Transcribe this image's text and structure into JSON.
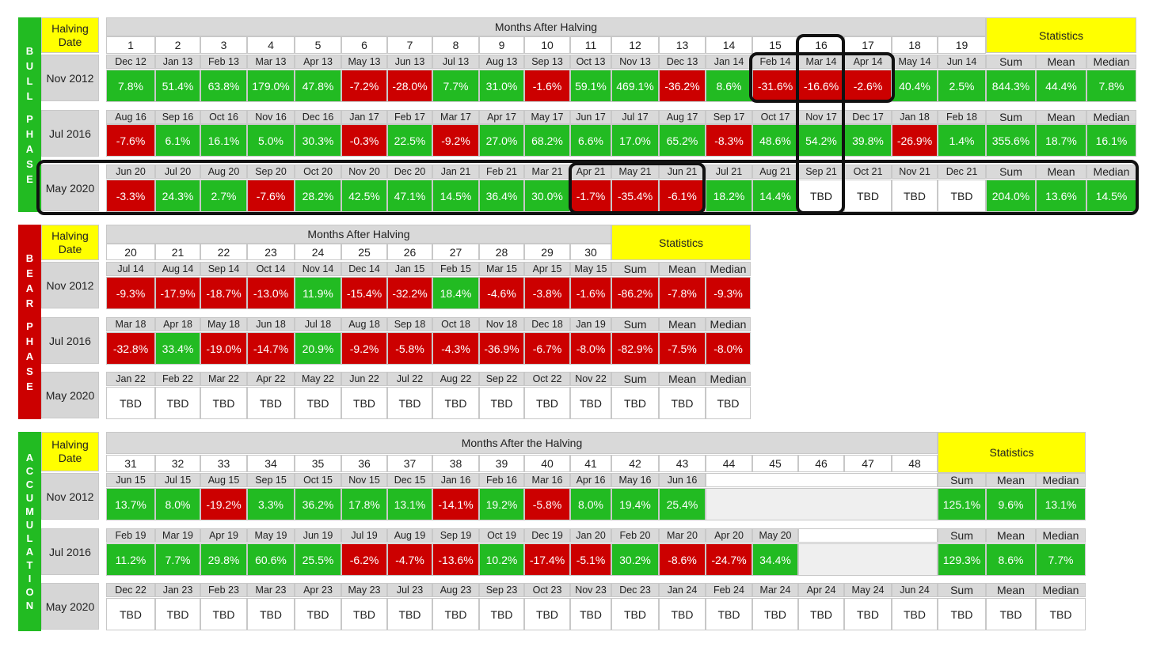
{
  "colors": {
    "positive": "#22bb22",
    "negative": "#cc0000",
    "yellow": "#ffff00",
    "gray": "#d9d9d9",
    "row_label_gray": "#d6d6d6",
    "phase_bull": "#22bb22",
    "phase_bear": "#cc0000",
    "phase_accum": "#22bb22",
    "empty_fill": "#efefef",
    "border": "#c8c8c8",
    "highlight": "#111111"
  },
  "chart_data": [
    {
      "type": "table",
      "phase": "BULL PHASE",
      "halving_label": "Halving Date",
      "months_title": "Months After Halving",
      "stats_title": "Statistics",
      "stat_labels": [
        "Sum",
        "Mean",
        "Median"
      ],
      "months": [
        "1",
        "2",
        "3",
        "4",
        "5",
        "6",
        "7",
        "8",
        "9",
        "10",
        "11",
        "12",
        "13",
        "14",
        "15",
        "16",
        "17",
        "18",
        "19"
      ],
      "rows": [
        {
          "halving": "Nov 2012",
          "dates": [
            "Dec 12",
            "Jan 13",
            "Feb 13",
            "Mar 13",
            "Apr 13",
            "May 13",
            "Jun 13",
            "Jul 13",
            "Aug 13",
            "Sep 13",
            "Oct 13",
            "Nov 13",
            "Dec 13",
            "Jan 14",
            "Feb 14",
            "Mar 14",
            "Apr 14",
            "May 14",
            "Jun 14"
          ],
          "values": [
            "7.8%",
            "51.4%",
            "63.8%",
            "179.0%",
            "47.8%",
            "-7.2%",
            "-28.0%",
            "7.7%",
            "31.0%",
            "-1.6%",
            "59.1%",
            "469.1%",
            "-36.2%",
            "8.6%",
            "-31.6%",
            "-16.6%",
            "-2.6%",
            "40.4%",
            "2.5%"
          ],
          "stats": [
            "844.3%",
            "44.4%",
            "7.8%"
          ]
        },
        {
          "halving": "Jul 2016",
          "dates": [
            "Aug 16",
            "Sep 16",
            "Oct 16",
            "Nov 16",
            "Dec 16",
            "Jan 17",
            "Feb 17",
            "Mar 17",
            "Apr 17",
            "May 17",
            "Jun 17",
            "Jul 17",
            "Aug 17",
            "Sep 17",
            "Oct 17",
            "Nov 17",
            "Dec 17",
            "Jan 18",
            "Feb 18"
          ],
          "values": [
            "-7.6%",
            "6.1%",
            "16.1%",
            "5.0%",
            "30.3%",
            "-0.3%",
            "22.5%",
            "-9.2%",
            "27.0%",
            "68.2%",
            "6.6%",
            "17.0%",
            "65.2%",
            "-8.3%",
            "48.6%",
            "54.2%",
            "39.8%",
            "-26.9%",
            "1.4%"
          ],
          "stats": [
            "355.6%",
            "18.7%",
            "16.1%"
          ]
        },
        {
          "halving": "May 2020",
          "dates": [
            "Jun 20",
            "Jul 20",
            "Aug 20",
            "Sep 20",
            "Oct 20",
            "Nov 20",
            "Dec 20",
            "Jan 21",
            "Feb 21",
            "Mar 21",
            "Apr 21",
            "May 21",
            "Jun 21",
            "Jul 21",
            "Aug 21",
            "Sep 21",
            "Oct 21",
            "Nov 21",
            "Dec 21"
          ],
          "values": [
            "-3.3%",
            "24.3%",
            "2.7%",
            "-7.6%",
            "28.2%",
            "42.5%",
            "47.1%",
            "14.5%",
            "36.4%",
            "30.0%",
            "-1.7%",
            "-35.4%",
            "-6.1%",
            "18.2%",
            "14.4%",
            "TBD",
            "TBD",
            "TBD",
            "TBD"
          ],
          "stats": [
            "204.0%",
            "13.6%",
            "14.5%"
          ]
        }
      ]
    },
    {
      "type": "table",
      "phase": "BEAR PHASE",
      "halving_label": "Halving Date",
      "months_title": "Months After Halving",
      "stats_title": "Statistics",
      "stat_labels": [
        "Sum",
        "Mean",
        "Median"
      ],
      "months": [
        "20",
        "21",
        "22",
        "23",
        "24",
        "25",
        "26",
        "27",
        "28",
        "29",
        "30"
      ],
      "rows": [
        {
          "halving": "Nov 2012",
          "dates": [
            "Jul 14",
            "Aug 14",
            "Sep 14",
            "Oct 14",
            "Nov 14",
            "Dec 14",
            "Jan 15",
            "Feb 15",
            "Mar 15",
            "Apr 15",
            "May 15"
          ],
          "values": [
            "-9.3%",
            "-17.9%",
            "-18.7%",
            "-13.0%",
            "11.9%",
            "-15.4%",
            "-32.2%",
            "18.4%",
            "-4.6%",
            "-3.8%",
            "-1.6%"
          ],
          "stats": [
            "-86.2%",
            "-7.8%",
            "-9.3%"
          ]
        },
        {
          "halving": "Jul 2016",
          "dates": [
            "Mar 18",
            "Apr 18",
            "May 18",
            "Jun 18",
            "Jul 18",
            "Aug 18",
            "Sep 18",
            "Oct 18",
            "Nov 18",
            "Dec 18",
            "Jan 19"
          ],
          "values": [
            "-32.8%",
            "33.4%",
            "-19.0%",
            "-14.7%",
            "20.9%",
            "-9.2%",
            "-5.8%",
            "-4.3%",
            "-36.9%",
            "-6.7%",
            "-8.0%"
          ],
          "stats": [
            "-82.9%",
            "-7.5%",
            "-8.0%"
          ]
        },
        {
          "halving": "May 2020",
          "dates": [
            "Jan 22",
            "Feb 22",
            "Mar 22",
            "Apr 22",
            "May 22",
            "Jun 22",
            "Jul 22",
            "Aug 22",
            "Sep 22",
            "Oct 22",
            "Nov 22"
          ],
          "values": [
            "TBD",
            "TBD",
            "TBD",
            "TBD",
            "TBD",
            "TBD",
            "TBD",
            "TBD",
            "TBD",
            "TBD",
            "TBD"
          ],
          "stats": [
            "TBD",
            "TBD",
            "TBD"
          ]
        }
      ]
    },
    {
      "type": "table",
      "phase": "ACCUMULATION",
      "halving_label": "Halving Date",
      "months_title": "Months After the Halving",
      "stats_title": "Statistics",
      "stat_labels": [
        "Sum",
        "Mean",
        "Median"
      ],
      "months": [
        "31",
        "32",
        "33",
        "34",
        "35",
        "36",
        "37",
        "38",
        "39",
        "40",
        "41",
        "42",
        "43",
        "44",
        "45",
        "46",
        "47",
        "48"
      ],
      "rows": [
        {
          "halving": "Nov 2012",
          "dates": [
            "Jun 15",
            "Jul 15",
            "Aug 15",
            "Sep 15",
            "Oct 15",
            "Nov 15",
            "Dec 15",
            "Jan 16",
            "Feb 16",
            "Mar 16",
            "Apr 16",
            "May 16",
            "Jun 16"
          ],
          "values": [
            "13.7%",
            "8.0%",
            "-19.2%",
            "3.3%",
            "36.2%",
            "17.8%",
            "13.1%",
            "-14.1%",
            "19.2%",
            "-5.8%",
            "8.0%",
            "19.4%",
            "25.4%"
          ],
          "stats": [
            "125.1%",
            "9.6%",
            "13.1%"
          ]
        },
        {
          "halving": "Jul 2016",
          "dates": [
            "Feb 19",
            "Mar 19",
            "Apr 19",
            "May 19",
            "Jun 19",
            "Jul 19",
            "Aug 19",
            "Sep 19",
            "Oct 19",
            "Dec 19",
            "Jan 20",
            "Feb 20",
            "Mar 20",
            "Apr 20",
            "May 20"
          ],
          "values": [
            "11.2%",
            "7.7%",
            "29.8%",
            "60.6%",
            "25.5%",
            "-6.2%",
            "-4.7%",
            "-13.6%",
            "10.2%",
            "-17.4%",
            "-5.1%",
            "30.2%",
            "-8.6%",
            "-24.7%",
            "34.4%"
          ],
          "stats": [
            "129.3%",
            "8.6%",
            "7.7%"
          ]
        },
        {
          "halving": "May 2020",
          "dates": [
            "Dec 22",
            "Jan 23",
            "Feb 23",
            "Mar 23",
            "Apr 23",
            "May 23",
            "Jul 23",
            "Aug 23",
            "Sep 23",
            "Oct 23",
            "Nov 23",
            "Dec 23",
            "Jan 24",
            "Feb 24",
            "Mar 24",
            "Apr 24",
            "May 24",
            "Jun 24"
          ],
          "values": [
            "TBD",
            "TBD",
            "TBD",
            "TBD",
            "TBD",
            "TBD",
            "TBD",
            "TBD",
            "TBD",
            "TBD",
            "TBD",
            "TBD",
            "TBD",
            "TBD",
            "TBD",
            "TBD",
            "TBD",
            "TBD"
          ],
          "stats": [
            "TBD",
            "TBD",
            "TBD"
          ]
        }
      ]
    }
  ]
}
